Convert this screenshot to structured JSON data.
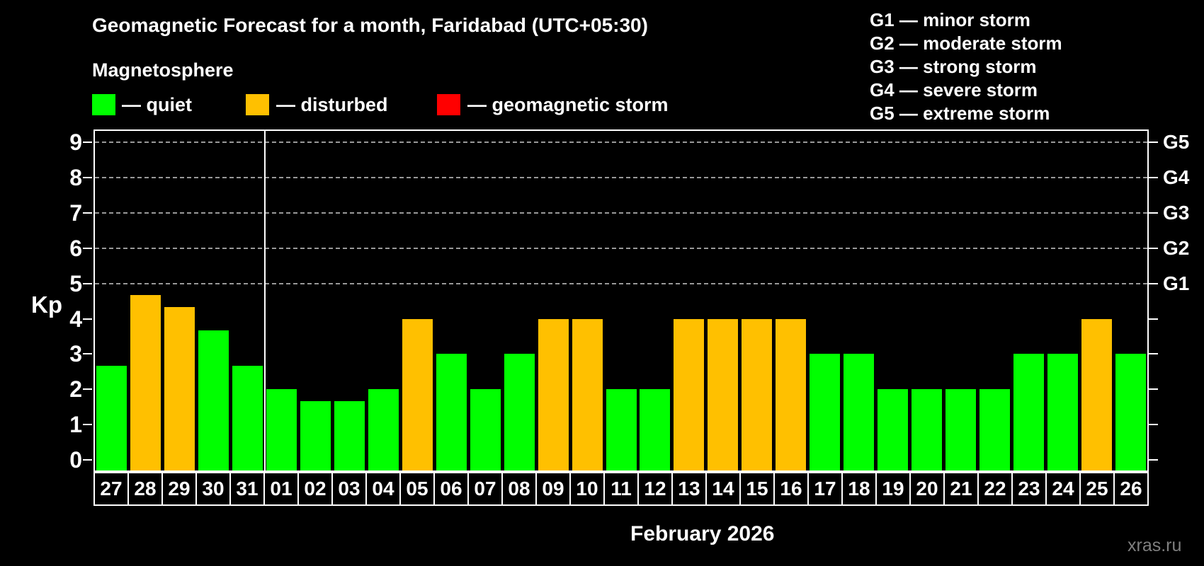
{
  "header": {
    "title": "Geomagnetic Forecast for a month, Faridabad (UTC+05:30)",
    "subtitle": "Magnetosphere"
  },
  "legend": {
    "items": [
      {
        "key": "quiet",
        "label": "— quiet",
        "color": "#00FF00"
      },
      {
        "key": "disturbed",
        "label": "— disturbed",
        "color": "#FFC000"
      },
      {
        "key": "storm",
        "label": "— geomagnetic storm",
        "color": "#FF0000"
      }
    ]
  },
  "g_legend": {
    "items": [
      "G1 — minor storm",
      "G2 — moderate storm",
      "G3 — strong storm",
      "G4 — severe storm",
      "G5 — extreme storm"
    ]
  },
  "watermark": "xras.ru",
  "chart_data": {
    "type": "bar",
    "title": "Geomagnetic Forecast for a month, Faridabad (UTC+05:30)",
    "ylabel": "Kp",
    "xlabel": "February 2026",
    "ylim": [
      0,
      9
    ],
    "yticks": [
      0,
      1,
      2,
      3,
      4,
      5,
      6,
      7,
      8,
      9
    ],
    "gridlines_at": [
      5,
      6,
      7,
      8,
      9
    ],
    "grid": "dashed-horizontal-upper-only",
    "legend_position": "top",
    "right_axis": {
      "labels": [
        {
          "value": 5,
          "label": "G1"
        },
        {
          "value": 6,
          "label": "G2"
        },
        {
          "value": 7,
          "label": "G3"
        },
        {
          "value": 8,
          "label": "G4"
        },
        {
          "value": 9,
          "label": "G5"
        }
      ]
    },
    "categories": [
      "27",
      "28",
      "29",
      "30",
      "31",
      "01",
      "02",
      "03",
      "04",
      "05",
      "06",
      "07",
      "08",
      "09",
      "10",
      "11",
      "12",
      "13",
      "14",
      "15",
      "16",
      "17",
      "18",
      "19",
      "20",
      "21",
      "22",
      "23",
      "24",
      "25",
      "26"
    ],
    "values": [
      2.67,
      4.67,
      4.33,
      3.67,
      2.67,
      2,
      1.67,
      1.67,
      2,
      4,
      3,
      2,
      3,
      4,
      4,
      2,
      2,
      4,
      4,
      4,
      4,
      3,
      3,
      2,
      2,
      2,
      2,
      3,
      3,
      4,
      3
    ],
    "statuses": [
      "quiet",
      "disturbed",
      "disturbed",
      "quiet",
      "quiet",
      "quiet",
      "quiet",
      "quiet",
      "quiet",
      "disturbed",
      "quiet",
      "quiet",
      "quiet",
      "disturbed",
      "disturbed",
      "quiet",
      "quiet",
      "disturbed",
      "disturbed",
      "disturbed",
      "disturbed",
      "quiet",
      "quiet",
      "quiet",
      "quiet",
      "quiet",
      "quiet",
      "quiet",
      "quiet",
      "disturbed",
      "quiet"
    ],
    "colors": {
      "quiet": "#00FF00",
      "disturbed": "#FFC000",
      "storm": "#FF0000"
    },
    "month_boundary_index": 5
  }
}
